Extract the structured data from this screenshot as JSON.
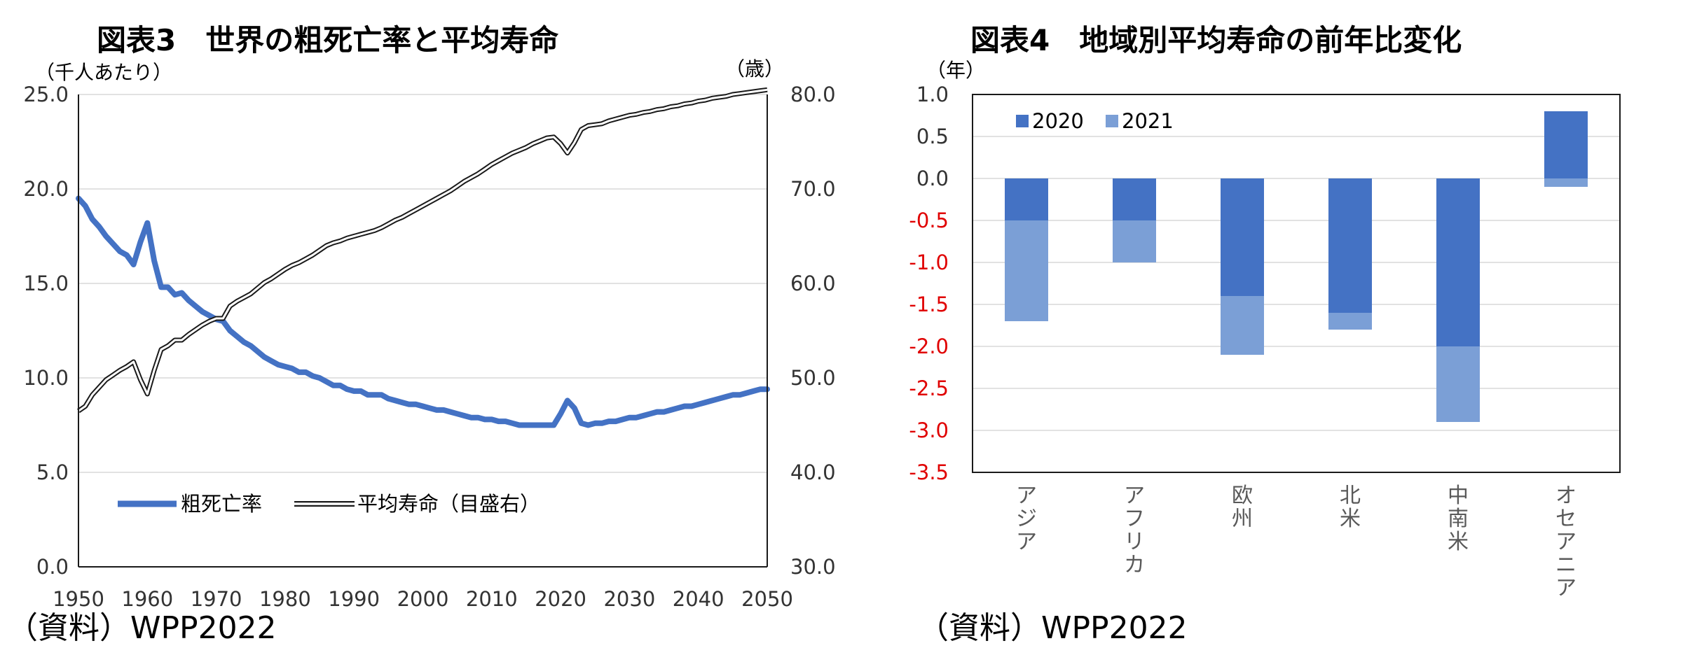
{
  "chart_data": [
    {
      "type": "line",
      "title": "図表3　世界の粗死亡率と平均寿命",
      "left_unit": "（千人あたり）",
      "right_unit": "（歳）",
      "source": "（資料）WPP2022",
      "x_ticks": [
        "1950",
        "1960",
        "1970",
        "1980",
        "1990",
        "2000",
        "2010",
        "2020",
        "2030",
        "2040",
        "2050"
      ],
      "y_ticks": [
        "0.0",
        "5.0",
        "10.0",
        "15.0",
        "20.0",
        "25.0"
      ],
      "y2_ticks": [
        "30.0",
        "40.0",
        "50.0",
        "60.0",
        "70.0",
        "80.0"
      ],
      "xlim": [
        1950,
        2050
      ],
      "ylim": [
        0,
        25
      ],
      "y2lim": [
        30,
        80
      ],
      "grid": true,
      "legend_position": "bottom-left",
      "series": [
        {
          "name": "粗死亡率",
          "axis": "left",
          "color": "#4472c4",
          "x": [
            1950,
            1951,
            1952,
            1953,
            1954,
            1955,
            1956,
            1957,
            1958,
            1959,
            1960,
            1961,
            1962,
            1963,
            1964,
            1965,
            1966,
            1967,
            1968,
            1969,
            1970,
            1971,
            1972,
            1973,
            1974,
            1975,
            1976,
            1977,
            1978,
            1979,
            1980,
            1981,
            1982,
            1983,
            1984,
            1985,
            1986,
            1987,
            1988,
            1989,
            1990,
            1991,
            1992,
            1993,
            1994,
            1995,
            1996,
            1997,
            1998,
            1999,
            2000,
            2001,
            2002,
            2003,
            2004,
            2005,
            2006,
            2007,
            2008,
            2009,
            2010,
            2011,
            2012,
            2013,
            2014,
            2015,
            2016,
            2017,
            2018,
            2019,
            2020,
            2021,
            2022,
            2023,
            2024,
            2025,
            2026,
            2027,
            2028,
            2029,
            2030,
            2031,
            2032,
            2033,
            2034,
            2035,
            2036,
            2037,
            2038,
            2039,
            2040,
            2041,
            2042,
            2043,
            2044,
            2045,
            2046,
            2047,
            2048,
            2049,
            2050
          ],
          "values": [
            19.5,
            19.1,
            18.4,
            18.0,
            17.5,
            17.1,
            16.7,
            16.5,
            16.0,
            17.2,
            18.2,
            16.2,
            14.8,
            14.8,
            14.4,
            14.5,
            14.1,
            13.8,
            13.5,
            13.3,
            13.1,
            13.0,
            12.5,
            12.2,
            11.9,
            11.7,
            11.4,
            11.1,
            10.9,
            10.7,
            10.6,
            10.5,
            10.3,
            10.3,
            10.1,
            10.0,
            9.8,
            9.6,
            9.6,
            9.4,
            9.3,
            9.3,
            9.1,
            9.1,
            9.1,
            8.9,
            8.8,
            8.7,
            8.6,
            8.6,
            8.5,
            8.4,
            8.3,
            8.3,
            8.2,
            8.1,
            8.0,
            7.9,
            7.9,
            7.8,
            7.8,
            7.7,
            7.7,
            7.6,
            7.5,
            7.5,
            7.5,
            7.5,
            7.5,
            7.5,
            8.1,
            8.8,
            8.4,
            7.6,
            7.5,
            7.6,
            7.6,
            7.7,
            7.7,
            7.8,
            7.9,
            7.9,
            8.0,
            8.1,
            8.2,
            8.2,
            8.3,
            8.4,
            8.5,
            8.5,
            8.6,
            8.7,
            8.8,
            8.9,
            9.0,
            9.1,
            9.1,
            9.2,
            9.3,
            9.4,
            9.4
          ]
        },
        {
          "name": "平均寿命（目盛右）",
          "axis": "right",
          "color": "#1a1a1a",
          "x": [
            1950,
            1951,
            1952,
            1953,
            1954,
            1955,
            1956,
            1957,
            1958,
            1959,
            1960,
            1961,
            1962,
            1963,
            1964,
            1965,
            1966,
            1967,
            1968,
            1969,
            1970,
            1971,
            1972,
            1973,
            1974,
            1975,
            1976,
            1977,
            1978,
            1979,
            1980,
            1981,
            1982,
            1983,
            1984,
            1985,
            1986,
            1987,
            1988,
            1989,
            1990,
            1991,
            1992,
            1993,
            1994,
            1995,
            1996,
            1997,
            1998,
            1999,
            2000,
            2001,
            2002,
            2003,
            2004,
            2005,
            2006,
            2007,
            2008,
            2009,
            2010,
            2011,
            2012,
            2013,
            2014,
            2015,
            2016,
            2017,
            2018,
            2019,
            2020,
            2021,
            2022,
            2023,
            2024,
            2025,
            2026,
            2027,
            2028,
            2029,
            2030,
            2031,
            2032,
            2033,
            2034,
            2035,
            2036,
            2037,
            2038,
            2039,
            2040,
            2041,
            2042,
            2043,
            2044,
            2045,
            2046,
            2047,
            2048,
            2049,
            2050
          ],
          "values": [
            46.5,
            47.0,
            48.2,
            49.0,
            49.8,
            50.3,
            50.8,
            51.2,
            51.7,
            49.8,
            48.3,
            50.8,
            53.0,
            53.4,
            54.0,
            54.0,
            54.6,
            55.1,
            55.6,
            56.0,
            56.3,
            56.3,
            57.6,
            58.1,
            58.5,
            58.9,
            59.5,
            60.1,
            60.5,
            61.0,
            61.5,
            61.9,
            62.2,
            62.6,
            63.0,
            63.5,
            64.0,
            64.3,
            64.5,
            64.8,
            65.0,
            65.2,
            65.4,
            65.6,
            65.9,
            66.3,
            66.7,
            67.0,
            67.4,
            67.8,
            68.2,
            68.6,
            69.0,
            69.4,
            69.8,
            70.3,
            70.8,
            71.2,
            71.6,
            72.1,
            72.6,
            73.0,
            73.4,
            73.8,
            74.1,
            74.4,
            74.8,
            75.1,
            75.4,
            75.5,
            74.8,
            73.8,
            74.9,
            76.3,
            76.7,
            76.8,
            76.9,
            77.2,
            77.4,
            77.6,
            77.8,
            77.9,
            78.1,
            78.2,
            78.4,
            78.5,
            78.7,
            78.8,
            79.0,
            79.1,
            79.3,
            79.4,
            79.6,
            79.7,
            79.8,
            80.0,
            80.1,
            80.2,
            80.3,
            80.4,
            80.5
          ]
        }
      ]
    },
    {
      "type": "bar",
      "stacked": true,
      "title": "図表4　地域別平均寿命の前年比変化",
      "left_unit": "（年）",
      "source": "（資料）WPP2022",
      "categories": [
        "アジア",
        "アフリカ",
        "欧州",
        "北米",
        "中南米",
        "オセアニア"
      ],
      "y_ticks": [
        "1.0",
        "0.5",
        "0.0",
        "-0.5",
        "-1.0",
        "-1.5",
        "-2.0",
        "-2.5",
        "-3.0",
        "-3.5"
      ],
      "ylim": [
        -3.5,
        1.0
      ],
      "grid": true,
      "legend_position": "top-left",
      "negative_tick_color": "#e00000",
      "series": [
        {
          "name": "2020",
          "color": "#4472c4",
          "values": [
            -0.5,
            -0.5,
            -1.4,
            -1.6,
            -2.0,
            0.8
          ]
        },
        {
          "name": "2021",
          "color": "#7b9fd6",
          "values": [
            -1.2,
            -0.5,
            -0.7,
            -0.2,
            -0.9,
            -0.1
          ]
        }
      ]
    }
  ]
}
